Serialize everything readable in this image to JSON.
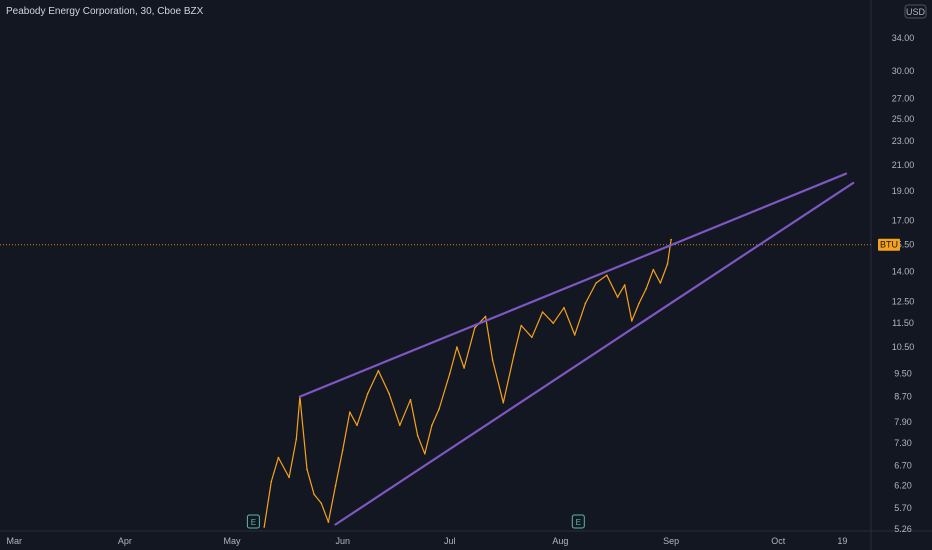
{
  "header": {
    "title": "Peabody Energy Corporation, 30, Cboe BZX"
  },
  "currency": "USD",
  "price_label": "BTU",
  "earnings_marker": "E",
  "colors": {
    "background": "#131722",
    "price_line": "#f7a21b",
    "trendline": "#7e57c2",
    "price_label_bg": "#f7a21b",
    "axis_text": "#b2b5be",
    "earnings": "#5fb8a6"
  },
  "chart_data": {
    "type": "line",
    "title": "Peabody Energy Corporation, 30, Cboe BZX",
    "y_scale": "log",
    "ylim": [
      5.2,
      38
    ],
    "xlim": [
      "2021-02-25",
      "2021-10-27"
    ],
    "y_ticks": [
      34.0,
      30.0,
      27.0,
      25.0,
      23.0,
      21.0,
      19.0,
      17.0,
      15.5,
      14.0,
      12.5,
      11.5,
      10.5,
      9.5,
      8.7,
      7.9,
      7.3,
      6.7,
      6.2,
      5.7,
      5.26
    ],
    "y_tick_labels": [
      "34.00",
      "30.00",
      "27.00",
      "25.00",
      "23.00",
      "21.00",
      "19.00",
      "17.00",
      "15.50",
      "14.00",
      "12.50",
      "11.50",
      "10.50",
      "9.50",
      "8.70",
      "7.90",
      "7.30",
      "6.70",
      "6.20",
      "5.70",
      "5.26"
    ],
    "x_ticks": [
      "Mar",
      "Apr",
      "May",
      "Jun",
      "Jul",
      "Aug",
      "Sep",
      "Oct",
      "19"
    ],
    "x_tick_dates": [
      "2021-03-01",
      "2021-04-01",
      "2021-05-01",
      "2021-06-01",
      "2021-07-01",
      "2021-08-01",
      "2021-09-01",
      "2021-10-01",
      "2021-10-19"
    ],
    "current_price": 15.5,
    "earnings_dates": [
      "2021-05-07",
      "2021-08-06"
    ],
    "series": [
      {
        "x": [
          "2021-05-10",
          "2021-05-12",
          "2021-05-14",
          "2021-05-17",
          "2021-05-19",
          "2021-05-20",
          "2021-05-22",
          "2021-05-24",
          "2021-05-26",
          "2021-05-28",
          "2021-05-30",
          "2021-06-01",
          "2021-06-03",
          "2021-06-05",
          "2021-06-08",
          "2021-06-11",
          "2021-06-14",
          "2021-06-17",
          "2021-06-20",
          "2021-06-22",
          "2021-06-24",
          "2021-06-26",
          "2021-06-28",
          "2021-07-01",
          "2021-07-03",
          "2021-07-05",
          "2021-07-08",
          "2021-07-11",
          "2021-07-13",
          "2021-07-16",
          "2021-07-19",
          "2021-07-21",
          "2021-07-24",
          "2021-07-27",
          "2021-07-30",
          "2021-08-02",
          "2021-08-05",
          "2021-08-08",
          "2021-08-11",
          "2021-08-14",
          "2021-08-17",
          "2021-08-19",
          "2021-08-21",
          "2021-08-23",
          "2021-08-25",
          "2021-08-27",
          "2021-08-29",
          "2021-08-31",
          "2021-09-01"
        ],
        "values": [
          5.3,
          6.3,
          6.9,
          6.4,
          7.4,
          8.7,
          6.6,
          6.0,
          5.8,
          5.4,
          6.2,
          7.1,
          8.2,
          7.8,
          8.8,
          9.6,
          8.8,
          7.8,
          8.6,
          7.5,
          7.0,
          7.8,
          8.3,
          9.5,
          10.5,
          9.7,
          11.3,
          11.8,
          10.0,
          8.5,
          10.2,
          11.4,
          10.9,
          12.0,
          11.5,
          12.2,
          11.0,
          12.4,
          13.4,
          13.8,
          12.7,
          13.3,
          11.6,
          12.4,
          13.1,
          14.1,
          13.4,
          14.4,
          15.8
        ]
      }
    ],
    "trendlines": [
      {
        "from": {
          "x": "2021-05-20",
          "y": 8.7
        },
        "to": {
          "x": "2021-10-20",
          "y": 20.3
        }
      },
      {
        "from": {
          "x": "2021-05-30",
          "y": 5.35
        },
        "to": {
          "x": "2021-10-22",
          "y": 19.6
        }
      }
    ]
  }
}
